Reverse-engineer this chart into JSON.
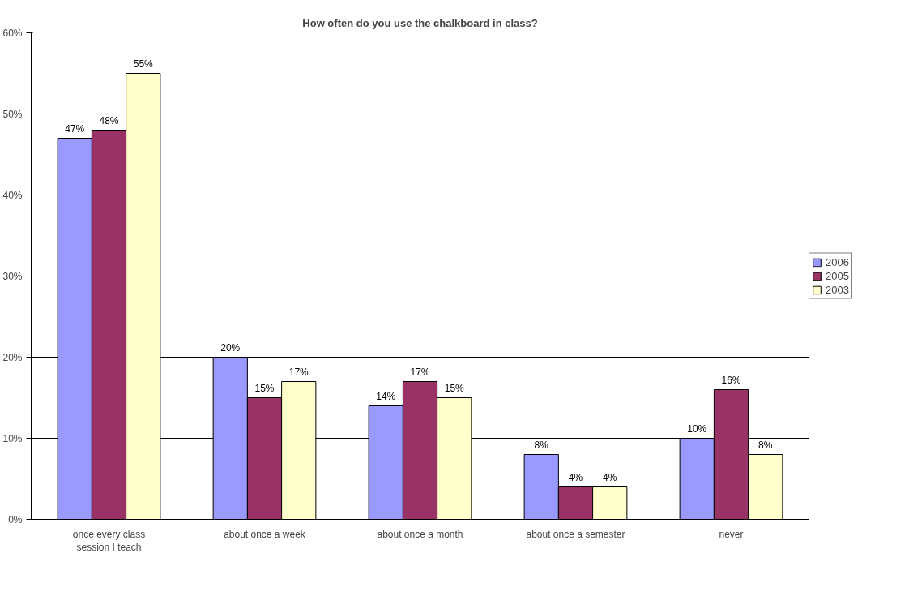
{
  "chart_data": {
    "type": "bar",
    "title": "How often do you use the chalkboard in class?",
    "categories": [
      "once every class session I teach",
      "about once a week",
      "about once a month",
      "about once a semester",
      "never"
    ],
    "series": [
      {
        "name": "2006",
        "color": "#9999ff",
        "values": [
          47,
          20,
          14,
          8,
          10
        ],
        "value_labels": [
          "47%",
          "20%",
          "14%",
          "8%",
          "10%"
        ]
      },
      {
        "name": "2005",
        "color": "#993366",
        "values": [
          48,
          15,
          17,
          4,
          16
        ],
        "value_labels": [
          "48%",
          "15%",
          "17%",
          "4%",
          "16%"
        ]
      },
      {
        "name": "2003",
        "color": "#ffffcc",
        "values": [
          55,
          17,
          15,
          4,
          8
        ],
        "value_labels": [
          "55%",
          "17%",
          "15%",
          "4%",
          "8%"
        ]
      }
    ],
    "ylim": [
      0,
      60
    ],
    "yticks": [
      {
        "value": 0,
        "label": "0%"
      },
      {
        "value": 10,
        "label": "10%"
      },
      {
        "value": 20,
        "label": "20%"
      },
      {
        "value": 30,
        "label": "30%"
      },
      {
        "value": 40,
        "label": "40%"
      },
      {
        "value": 50,
        "label": "50%"
      },
      {
        "value": 60,
        "label": "60%"
      }
    ],
    "grid": "y",
    "legend": "right"
  }
}
